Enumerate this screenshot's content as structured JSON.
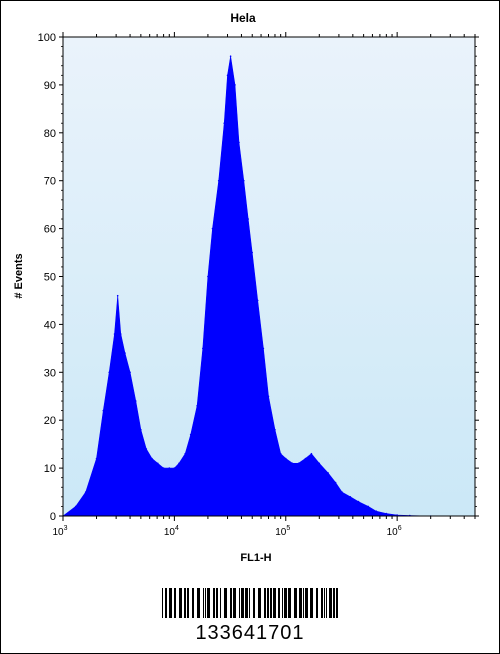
{
  "chart_data": {
    "type": "area",
    "title": "Hela",
    "xlabel": "FL1-H",
    "ylabel": "# Events",
    "x_scale": "log",
    "xlim": [
      1000,
      5000000
    ],
    "ylim": [
      0,
      100
    ],
    "y_ticks": [
      0,
      10,
      20,
      30,
      40,
      50,
      60,
      70,
      80,
      90,
      100
    ],
    "x_ticks": [
      {
        "value": 1000,
        "base": "10",
        "exp": "3"
      },
      {
        "value": 10000,
        "base": "10",
        "exp": "4"
      },
      {
        "value": 100000,
        "base": "10",
        "exp": "5"
      },
      {
        "value": 1000000,
        "base": "10",
        "exp": "6"
      }
    ],
    "grid": false,
    "colors": {
      "fill": "#0000ff",
      "plot_background_top": "#eaf3fb",
      "plot_background_bottom": "#cbe8f7"
    },
    "series": [
      {
        "x": [
          1000,
          1300,
          1600,
          2000,
          2300,
          2600,
          2900,
          3100,
          3300,
          3600,
          4000,
          4500,
          5000,
          5600,
          6300,
          7100,
          8000,
          9000,
          10000,
          11000,
          12500,
          14000,
          16000,
          18000,
          20000,
          22000,
          25000,
          28000,
          30000,
          32000,
          35000,
          38000,
          42000,
          46000,
          50000,
          56000,
          63000,
          70000,
          80000,
          90000,
          100000,
          115000,
          130000,
          150000,
          170000,
          200000,
          240000,
          280000,
          320000,
          380000,
          450000,
          550000,
          650000,
          800000,
          1000000,
          1300000,
          2000000,
          5000000
        ],
        "y": [
          0,
          2,
          5,
          12,
          22,
          30,
          38,
          46,
          38,
          34,
          30,
          24,
          18,
          14,
          12,
          11,
          10,
          10,
          10,
          11,
          13,
          17,
          23,
          35,
          50,
          60,
          70,
          82,
          92,
          96,
          90,
          78,
          70,
          62,
          55,
          45,
          35,
          25,
          18,
          13,
          12,
          11,
          11,
          12,
          13,
          11,
          9,
          7,
          5,
          4,
          3,
          2,
          1,
          0.5,
          0.2,
          0.1,
          0,
          0
        ]
      }
    ]
  },
  "barcode": {
    "number": "133641701"
  }
}
